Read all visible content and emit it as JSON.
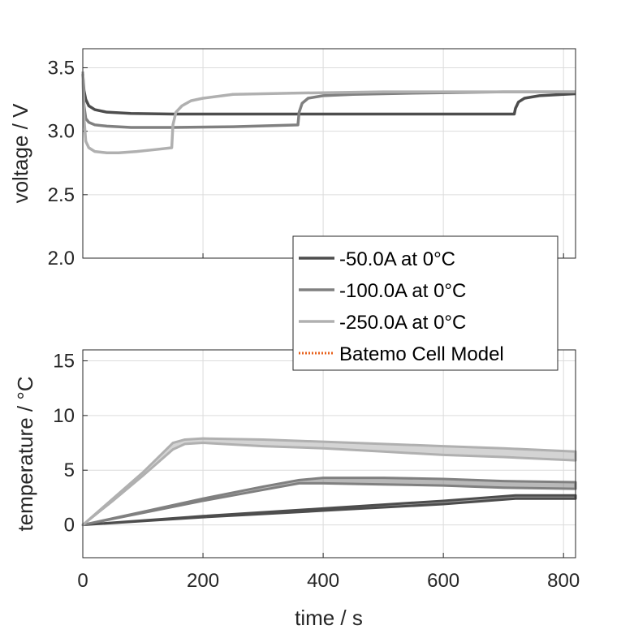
{
  "chart_data": [
    {
      "type": "line",
      "name": "voltage-panel",
      "ylabel": "voltage / V",
      "xlabel": "",
      "xlim": [
        0,
        820
      ],
      "ylim": [
        2.0,
        3.65
      ],
      "xticks": [
        0,
        200,
        400,
        600,
        800
      ],
      "yticks": [
        2.0,
        2.5,
        3.0,
        3.5
      ],
      "ytick_labels": [
        "2.0",
        "2.5",
        "3.0",
        "3.5"
      ],
      "grid": true,
      "series": [
        {
          "name": "-50.0A at 0°C",
          "color": "#4d4d4d",
          "x": [
            0,
            2,
            5,
            10,
            20,
            40,
            80,
            150,
            300,
            500,
            718,
            720,
            725,
            735,
            760,
            800,
            820
          ],
          "y": [
            3.45,
            3.32,
            3.25,
            3.2,
            3.17,
            3.15,
            3.14,
            3.135,
            3.135,
            3.135,
            3.135,
            3.18,
            3.23,
            3.26,
            3.28,
            3.29,
            3.295
          ]
        },
        {
          "name": "-100.0A at 0°C",
          "color": "#808080",
          "x": [
            0,
            2,
            5,
            10,
            20,
            40,
            80,
            150,
            250,
            358,
            360,
            365,
            375,
            400,
            450,
            550,
            700,
            820
          ],
          "y": [
            3.45,
            3.2,
            3.1,
            3.07,
            3.05,
            3.04,
            3.03,
            3.03,
            3.035,
            3.05,
            3.15,
            3.22,
            3.26,
            3.28,
            3.29,
            3.3,
            3.31,
            3.31
          ]
        },
        {
          "name": "-250.0A at 0°C",
          "color": "#b0b0b0",
          "x": [
            0,
            2,
            5,
            10,
            20,
            40,
            60,
            90,
            120,
            148,
            150,
            155,
            165,
            180,
            200,
            250,
            350,
            500,
            820
          ],
          "y": [
            3.47,
            3.1,
            2.92,
            2.87,
            2.84,
            2.83,
            2.83,
            2.84,
            2.855,
            2.87,
            3.05,
            3.15,
            3.2,
            3.24,
            3.26,
            3.29,
            3.3,
            3.31,
            3.31
          ]
        }
      ]
    },
    {
      "type": "area",
      "name": "temperature-panel",
      "ylabel": "temperature / °C",
      "xlabel": "time / s",
      "xlim": [
        0,
        820
      ],
      "ylim": [
        -3,
        16
      ],
      "xticks": [
        0,
        200,
        400,
        600,
        800
      ],
      "xtick_labels": [
        "0",
        "200",
        "400",
        "600",
        "800"
      ],
      "yticks": [
        0,
        5,
        10,
        15
      ],
      "ytick_labels": [
        "0",
        "5",
        "10",
        "15"
      ],
      "grid": true,
      "series": [
        {
          "name": "-50.0A at 0°C",
          "color": "#4d4d4d",
          "x": [
            0,
            200,
            400,
            600,
            720,
            820
          ],
          "upper": [
            0,
            0.8,
            1.5,
            2.2,
            2.7,
            2.7
          ],
          "lower": [
            0,
            0.7,
            1.3,
            1.9,
            2.4,
            2.4
          ]
        },
        {
          "name": "-100.0A at 0°C",
          "color": "#808080",
          "x": [
            0,
            100,
            200,
            300,
            360,
            400,
            500,
            600,
            700,
            820
          ],
          "upper": [
            0,
            1.2,
            2.4,
            3.5,
            4.1,
            4.3,
            4.3,
            4.2,
            4.0,
            3.9
          ],
          "lower": [
            0,
            1.1,
            2.2,
            3.2,
            3.8,
            3.8,
            3.7,
            3.6,
            3.4,
            3.3
          ]
        },
        {
          "name": "-250.0A at 0°C",
          "color": "#b0b0b0",
          "x": [
            0,
            50,
            100,
            150,
            170,
            200,
            300,
            400,
            500,
            600,
            700,
            820
          ],
          "upper": [
            0,
            2.4,
            4.8,
            7.5,
            7.8,
            7.9,
            7.8,
            7.6,
            7.4,
            7.2,
            7.0,
            6.7
          ],
          "lower": [
            0,
            2.2,
            4.5,
            6.9,
            7.4,
            7.5,
            7.2,
            7.0,
            6.7,
            6.4,
            6.2,
            5.9
          ]
        }
      ]
    }
  ],
  "legend": {
    "placement": "center-right",
    "entries": [
      {
        "label": "-50.0A at 0°C",
        "color": "#4d4d4d",
        "style": "solid"
      },
      {
        "label": "-100.0A at 0°C",
        "color": "#808080",
        "style": "solid"
      },
      {
        "label": "-250.0A at 0°C",
        "color": "#b0b0b0",
        "style": "solid"
      },
      {
        "label": "Batemo Cell Model",
        "color": "#e8621e",
        "style": "dotted"
      }
    ]
  }
}
